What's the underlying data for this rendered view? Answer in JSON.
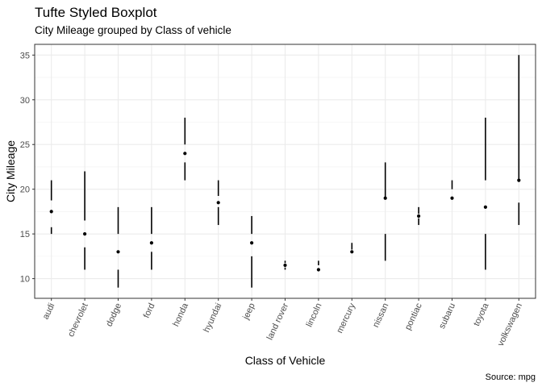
{
  "chart_data": {
    "type": "boxplot",
    "style": "tufte",
    "title": "Tufte Styled Boxplot",
    "subtitle": "City Mileage grouped by Class of vehicle",
    "xlabel": "Class of Vehicle",
    "ylabel": "City Mileage",
    "caption": "Source: mpg",
    "ylim": [
      7.8,
      36.2
    ],
    "yticks": [
      10,
      15,
      20,
      25,
      30,
      35
    ],
    "grid": true,
    "categories": [
      "audi",
      "chevrolet",
      "dodge",
      "ford",
      "honda",
      "hyundai",
      "jeep",
      "land rover",
      "lincoln",
      "mercury",
      "nissan",
      "pontiac",
      "subaru",
      "toyota",
      "volkswagen"
    ],
    "boxes": [
      {
        "min": 15,
        "q1": 15.75,
        "median": 17.5,
        "q3": 18.75,
        "max": 21
      },
      {
        "min": 11,
        "q1": 13.5,
        "median": 15,
        "q3": 16.5,
        "max": 22
      },
      {
        "min": 9,
        "q1": 11,
        "median": 13,
        "q3": 15,
        "max": 18
      },
      {
        "min": 11,
        "q1": 13,
        "median": 14,
        "q3": 15,
        "max": 18
      },
      {
        "min": 21,
        "q1": 23,
        "median": 24,
        "q3": 25,
        "max": 28
      },
      {
        "min": 16,
        "q1": 18,
        "median": 18.5,
        "q3": 19.25,
        "max": 21
      },
      {
        "min": 9,
        "q1": 12.5,
        "median": 14,
        "q3": 15,
        "max": 17
      },
      {
        "min": 11,
        "q1": 11.25,
        "median": 11.5,
        "q3": 11.75,
        "max": 12
      },
      {
        "min": 11,
        "q1": 11,
        "median": 11,
        "q3": 11.5,
        "max": 12
      },
      {
        "min": 13,
        "q1": 13,
        "median": 13,
        "q3": 13.25,
        "max": 14
      },
      {
        "min": 12,
        "q1": 15,
        "median": 19,
        "q3": 19,
        "max": 23
      },
      {
        "min": 16,
        "q1": 16.75,
        "median": 17,
        "q3": 17.25,
        "max": 18
      },
      {
        "min": 18,
        "q1": 18,
        "median": 19,
        "q3": 20,
        "max": 21
      },
      {
        "min": 11,
        "q1": 15,
        "median": 18,
        "q3": 21,
        "max": 28
      },
      {
        "min": 16,
        "q1": 18.5,
        "median": 21,
        "q3": 21,
        "max": 35
      }
    ]
  }
}
